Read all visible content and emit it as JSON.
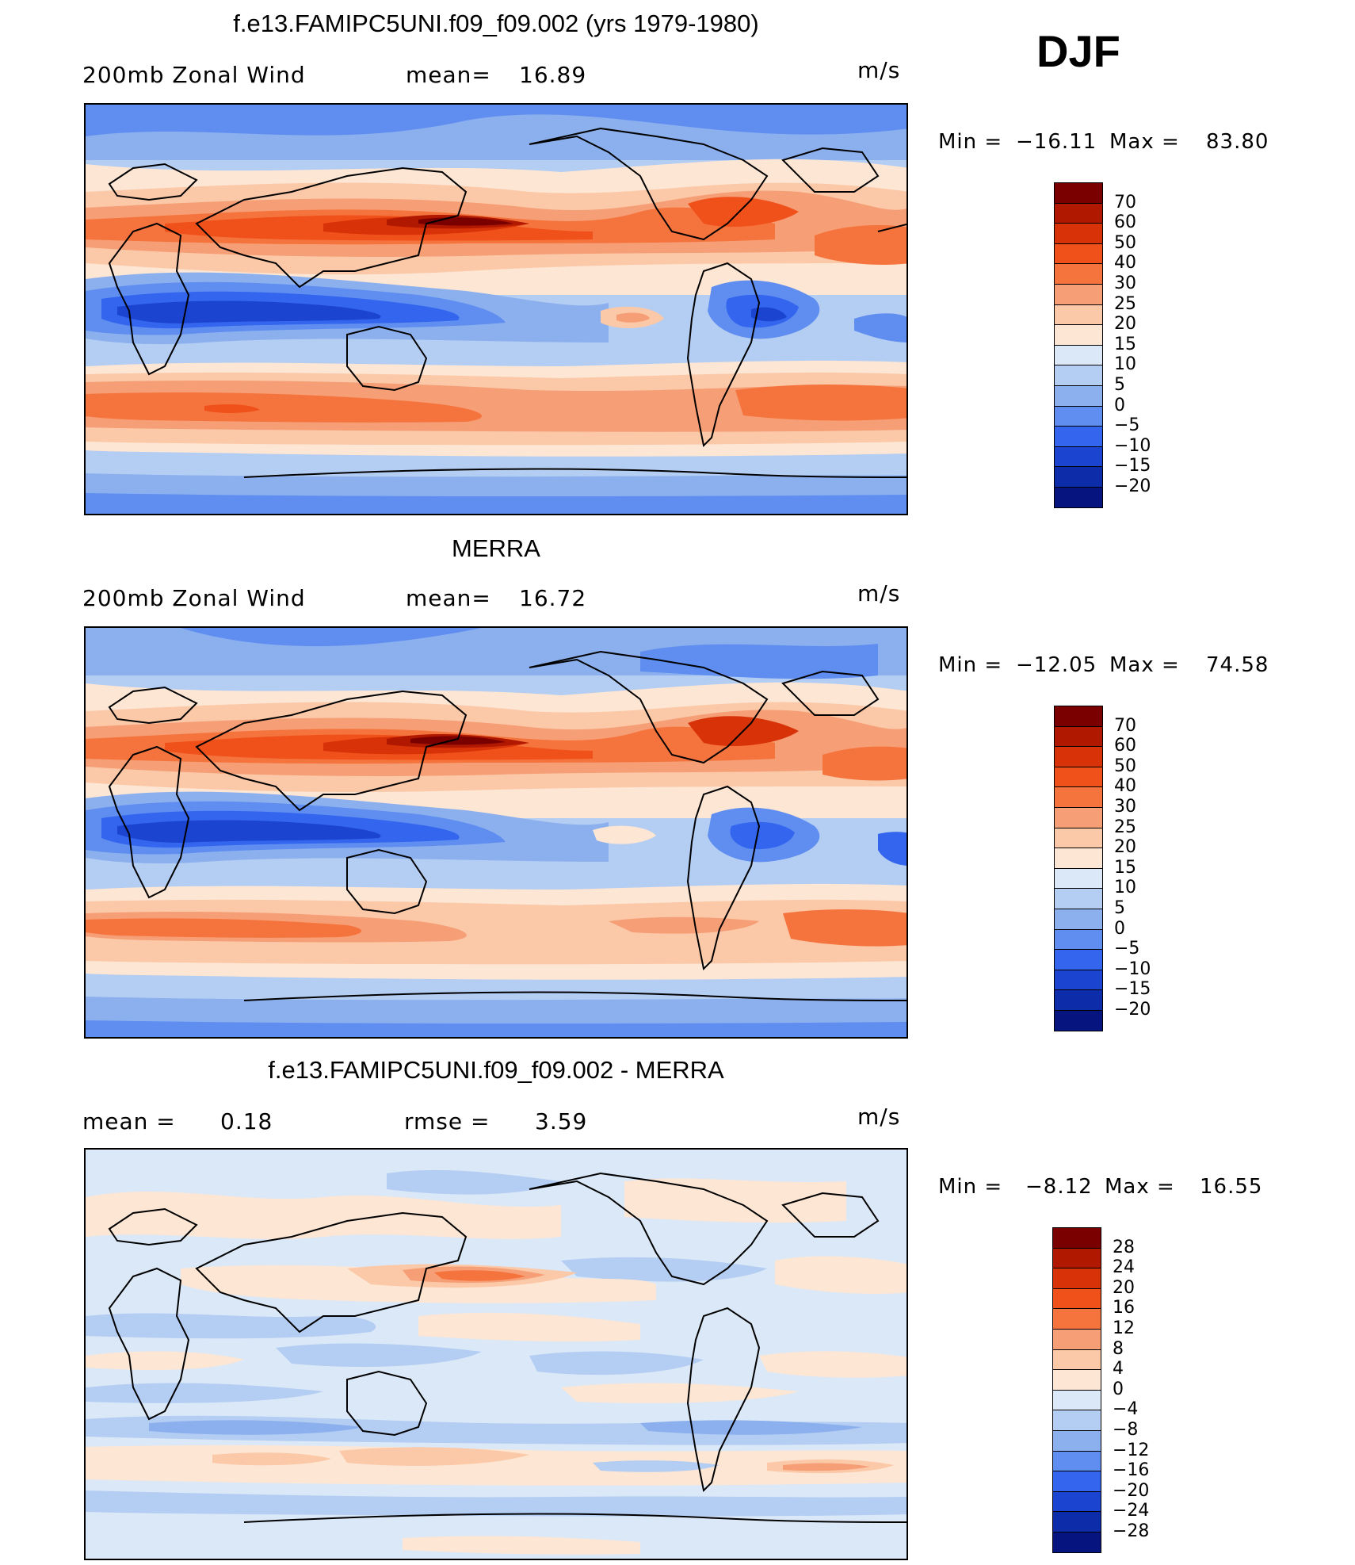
{
  "season": "DJF",
  "panels": [
    {
      "title": "f.e13.FAMIPC5UNI.f09_f09.002 (yrs 1979-1980)",
      "subtitle_left": "200mb Zonal Wind",
      "stat_label": "mean=",
      "stat_value": "16.89",
      "stat2_label": "",
      "stat2_value": "",
      "units": "m/s",
      "min_label": "Min =",
      "min_value": "−16.11",
      "max_label": "Max =",
      "max_value": "83.80",
      "colorbar": [
        "70",
        "60",
        "50",
        "40",
        "30",
        "25",
        "20",
        "15",
        "10",
        "5",
        "0",
        "−5",
        "−10",
        "−15",
        "−20"
      ]
    },
    {
      "title": "MERRA",
      "subtitle_left": "200mb Zonal Wind",
      "stat_label": "mean=",
      "stat_value": "16.72",
      "stat2_label": "",
      "stat2_value": "",
      "units": "m/s",
      "min_label": "Min =",
      "min_value": "−12.05",
      "max_label": "Max =",
      "max_value": "74.58",
      "colorbar": [
        "70",
        "60",
        "50",
        "40",
        "30",
        "25",
        "20",
        "15",
        "10",
        "5",
        "0",
        "−5",
        "−10",
        "−15",
        "−20"
      ]
    },
    {
      "title": "f.e13.FAMIPC5UNI.f09_f09.002 - MERRA",
      "subtitle_left": "",
      "stat_label": "mean =",
      "stat_value": "0.18",
      "stat2_label": "rmse =",
      "stat2_value": "3.59",
      "units": "m/s",
      "min_label": "Min =",
      "min_value": "−8.12",
      "max_label": "Max =",
      "max_value": "16.55",
      "colorbar": [
        "28",
        "24",
        "20",
        "16",
        "12",
        "8",
        "4",
        "0",
        "−4",
        "−8",
        "−12",
        "−16",
        "−20",
        "−24",
        "−28"
      ]
    }
  ],
  "colors": {
    "colorbar": [
      "#7a0000",
      "#b01800",
      "#d83208",
      "#f0501a",
      "#f5743e",
      "#f69e75",
      "#fbc8a8",
      "#fde6d4",
      "#dbe8f8",
      "#b4cdf2",
      "#8cb0ee",
      "#5f8ef0",
      "#3465ee",
      "#1b44d0",
      "#0c2caa",
      "#05147e"
    ]
  },
  "chart_data": [
    {
      "type": "heatmap",
      "title": "f.e13.FAMIPC5UNI.f09_f09.002 (yrs 1979-1980)",
      "subtitle": "200mb Zonal Wind",
      "units": "m/s",
      "mean": 16.89,
      "min": -16.11,
      "max": 83.8,
      "levels": [
        -20,
        -15,
        -10,
        -5,
        0,
        5,
        10,
        15,
        20,
        25,
        30,
        40,
        50,
        60,
        70
      ],
      "description_features": [
        "subtropical jet core near Japan",
        "jet over eastern North America",
        "tropical easterlies over Indian Ocean / maritime continent",
        "southern hemisphere midlatitude westerlies"
      ]
    },
    {
      "type": "heatmap",
      "title": "MERRA",
      "subtitle": "200mb Zonal Wind",
      "units": "m/s",
      "mean": 16.72,
      "min": -12.05,
      "max": 74.58,
      "levels": [
        -20,
        -15,
        -10,
        -5,
        0,
        5,
        10,
        15,
        20,
        25,
        30,
        40,
        50,
        60,
        70
      ]
    },
    {
      "type": "heatmap",
      "title": "f.e13.FAMIPC5UNI.f09_f09.002 - MERRA",
      "units": "m/s",
      "mean": 0.18,
      "rmse": 3.59,
      "min": -8.12,
      "max": 16.55,
      "levels": [
        -28,
        -24,
        -20,
        -16,
        -12,
        -8,
        -4,
        0,
        4,
        8,
        12,
        16,
        20,
        24,
        28
      ]
    }
  ]
}
